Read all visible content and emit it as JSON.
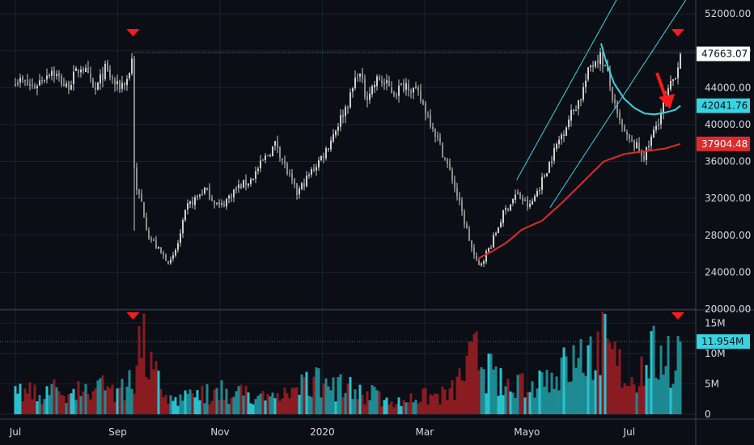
{
  "chart_data": {
    "type": "candlestick",
    "title": "",
    "colors": {
      "background": "#0b0e15",
      "grid": "#1b2230",
      "candle": "#c9c9c9",
      "vol_up": "#1e8a92",
      "vol_down": "#8a1c22",
      "vol_up_bright": "#27c3cf",
      "ema_fast": "#36d4e0",
      "ema_slow": "#e02a2a",
      "channel": "#36d4e0",
      "arrow": "#ff1a1a",
      "price_badge_bg": "#ffffff",
      "price_badge_text": "#0b0e15",
      "teal_badge_bg": "#36d4e0",
      "red_badge_bg": "#e02a2a"
    },
    "x_axis": {
      "ticks": [
        {
          "label": "Jul",
          "month": 0
        },
        {
          "label": "Sep",
          "month": 2
        },
        {
          "label": "Nov",
          "month": 4
        },
        {
          "label": "2020",
          "month": 6
        },
        {
          "label": "Mar",
          "month": 8
        },
        {
          "label": "Mayo",
          "month": 10
        },
        {
          "label": "Jul",
          "month": 12
        }
      ],
      "range_months": [
        -0.3,
        13.3
      ]
    },
    "price_axis": {
      "ylim": [
        20000,
        53500
      ],
      "ticks": [
        20000,
        24000,
        28000,
        32000,
        36000,
        40000,
        44000,
        48000,
        52000
      ],
      "tick_labels": [
        "20000.00",
        "24000.00",
        "28000.00",
        "32000.00",
        "36000.00",
        "40000.00",
        "44000.00",
        "48000.00",
        "52000.00"
      ]
    },
    "volume_axis": {
      "ylim": [
        0,
        16500000
      ],
      "ticks": [
        0,
        5000000,
        10000000,
        15000000
      ],
      "tick_labels": [
        "0",
        "5M",
        "10M",
        "15M"
      ]
    },
    "price_markers": [
      {
        "name": "last-price",
        "label": "47663.07",
        "value": 47663.07,
        "style": "white"
      },
      {
        "name": "ema-fast-value",
        "label": "42041.76",
        "value": 42041.76,
        "style": "teal"
      },
      {
        "name": "ema-slow-value",
        "label": "37904.48",
        "value": 37904.48,
        "style": "red"
      }
    ],
    "volume_marker": {
      "label": "11.954M",
      "value": 11954000
    },
    "price_anchors": [
      [
        0,
        45000
      ],
      [
        0.35,
        44000
      ],
      [
        0.7,
        46000
      ],
      [
        1.0,
        44000
      ],
      [
        1.3,
        46500
      ],
      [
        1.55,
        43500
      ],
      [
        1.75,
        46000
      ],
      [
        2.0,
        44000
      ],
      [
        2.2,
        45000
      ],
      [
        2.3,
        47700
      ],
      [
        2.33,
        33000
      ],
      [
        2.45,
        32000
      ],
      [
        2.6,
        28000
      ],
      [
        2.85,
        26000
      ],
      [
        3.05,
        25000
      ],
      [
        3.2,
        27500
      ],
      [
        3.35,
        31000
      ],
      [
        3.7,
        33000
      ],
      [
        4.0,
        31000
      ],
      [
        4.3,
        33000
      ],
      [
        4.6,
        34000
      ],
      [
        4.9,
        36500
      ],
      [
        5.1,
        38000
      ],
      [
        5.3,
        35000
      ],
      [
        5.5,
        32500
      ],
      [
        5.8,
        35000
      ],
      [
        6.05,
        37000
      ],
      [
        6.3,
        40000
      ],
      [
        6.55,
        43000
      ],
      [
        6.7,
        46000
      ],
      [
        6.85,
        43000
      ],
      [
        7.1,
        45000
      ],
      [
        7.4,
        43500
      ],
      [
        7.65,
        44500
      ],
      [
        7.9,
        43000
      ],
      [
        8.15,
        40000
      ],
      [
        8.35,
        37000
      ],
      [
        8.55,
        34000
      ],
      [
        8.75,
        30000
      ],
      [
        8.95,
        26000
      ],
      [
        9.05,
        24500
      ],
      [
        9.3,
        27000
      ],
      [
        9.55,
        30500
      ],
      [
        9.8,
        32500
      ],
      [
        10.05,
        31000
      ],
      [
        10.3,
        34000
      ],
      [
        10.6,
        38000
      ],
      [
        10.85,
        41000
      ],
      [
        11.05,
        43000
      ],
      [
        11.25,
        46500
      ],
      [
        11.42,
        47500
      ],
      [
        11.55,
        46000
      ],
      [
        11.75,
        41000
      ],
      [
        11.95,
        38500
      ],
      [
        12.15,
        37500
      ],
      [
        12.3,
        36500
      ],
      [
        12.5,
        39500
      ],
      [
        12.7,
        42500
      ],
      [
        12.9,
        45500
      ],
      [
        13.0,
        47663
      ]
    ],
    "ema_fast_points": [
      [
        11.45,
        48800
      ],
      [
        11.55,
        46800
      ],
      [
        11.7,
        44500
      ],
      [
        11.9,
        42800
      ],
      [
        12.1,
        41800
      ],
      [
        12.3,
        41200
      ],
      [
        12.5,
        41100
      ],
      [
        12.7,
        41300
      ],
      [
        12.9,
        41600
      ],
      [
        13.0,
        42041
      ]
    ],
    "ema_slow_points": [
      [
        9.05,
        25500
      ],
      [
        9.3,
        26200
      ],
      [
        9.6,
        27200
      ],
      [
        9.9,
        28600
      ],
      [
        10.3,
        29600
      ],
      [
        10.7,
        31600
      ],
      [
        11.1,
        33800
      ],
      [
        11.5,
        36000
      ],
      [
        11.9,
        36800
      ],
      [
        12.3,
        37100
      ],
      [
        12.7,
        37400
      ],
      [
        13.0,
        37904
      ]
    ],
    "channel_lines": [
      {
        "name": "channel-upper-line",
        "from": [
          9.8,
          34000
        ],
        "to": [
          12.0,
          56000
        ]
      },
      {
        "name": "channel-lower-line",
        "from": [
          10.45,
          31000
        ],
        "to": [
          13.4,
          56000
        ]
      }
    ],
    "reference_line": {
      "value": 47800
    },
    "volume_anchors": [
      [
        0,
        4
      ],
      [
        2.3,
        6
      ],
      [
        2.45,
        16
      ],
      [
        2.6,
        10
      ],
      [
        3.0,
        3
      ],
      [
        4.0,
        5
      ],
      [
        5.0,
        3
      ],
      [
        6.0,
        7
      ],
      [
        6.5,
        5
      ],
      [
        7.5,
        3
      ],
      [
        8.5,
        4
      ],
      [
        9.0,
        12
      ],
      [
        9.5,
        6
      ],
      [
        10.5,
        8
      ],
      [
        11.2,
        12
      ],
      [
        11.5,
        14
      ],
      [
        12.0,
        7
      ],
      [
        12.5,
        12
      ],
      [
        13.0,
        11.95
      ]
    ],
    "top_markers_price": [
      {
        "x": 2.3
      },
      {
        "x": 12.95
      }
    ],
    "top_markers_volume": [
      {
        "x": 2.3
      },
      {
        "x": 12.95
      }
    ]
  }
}
